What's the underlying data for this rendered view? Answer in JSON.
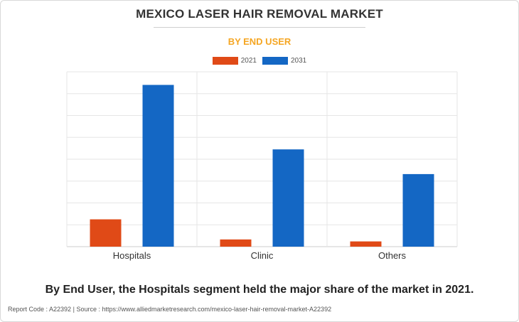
{
  "title": "MEXICO LASER HAIR REMOVAL MARKET",
  "subtitle": "BY END USER",
  "caption": "By End User, the Hospitals segment held the major share of the market in 2021.",
  "footer": {
    "report_code_label": "Report Code : A22392",
    "separator": "|",
    "source": "Source : https://www.alliedmarketresearch.com/mexico-laser-hair-removal-market-A22392"
  },
  "colors": {
    "series_2021": "#e04a17",
    "series_2031": "#1467c4",
    "subtitle": "#f5a623",
    "grid": "#e6e6e6",
    "axis": "#cccccc"
  },
  "chart_data": {
    "type": "bar",
    "categories": [
      "Hospitals",
      "Clinic",
      "Others"
    ],
    "series": [
      {
        "name": "2021",
        "values": [
          12.5,
          3.3,
          2.4
        ]
      },
      {
        "name": "2031",
        "values": [
          74.0,
          44.5,
          33.2
        ]
      }
    ],
    "ylim": [
      0,
      80
    ],
    "grid": true,
    "legend_position": "top-center",
    "xlabel": "",
    "ylabel": ""
  }
}
